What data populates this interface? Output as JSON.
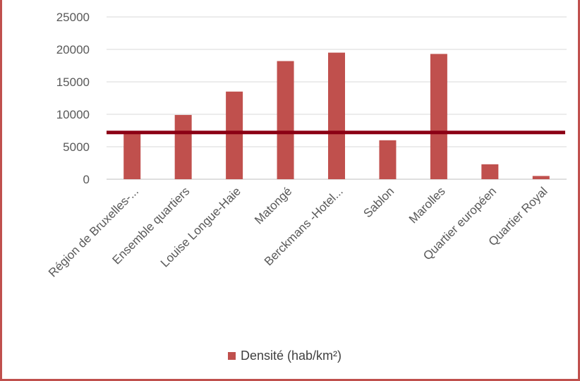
{
  "chart_data": {
    "type": "bar",
    "categories": [
      "Région de Bruxelles-...",
      "Ensemble quartiers",
      "Louise Longue-Haie",
      "Matongé",
      "Berckmans -Hotel...",
      "Sablon",
      "Marolles",
      "Quartier européen",
      "Quartier Royal"
    ],
    "series": [
      {
        "name": "Densité (hab/km²)",
        "values": [
          7400,
          9900,
          13500,
          18200,
          19500,
          6000,
          19300,
          2300,
          500
        ],
        "color": "#c0504d"
      }
    ],
    "reference_line": {
      "value": 7200,
      "color": "#8b0014"
    },
    "ylim": [
      0,
      25000
    ],
    "yticks": [
      0,
      5000,
      10000,
      15000,
      20000,
      25000
    ],
    "grid": true,
    "legend_position": "bottom",
    "title": "",
    "xlabel": "",
    "ylabel": ""
  }
}
